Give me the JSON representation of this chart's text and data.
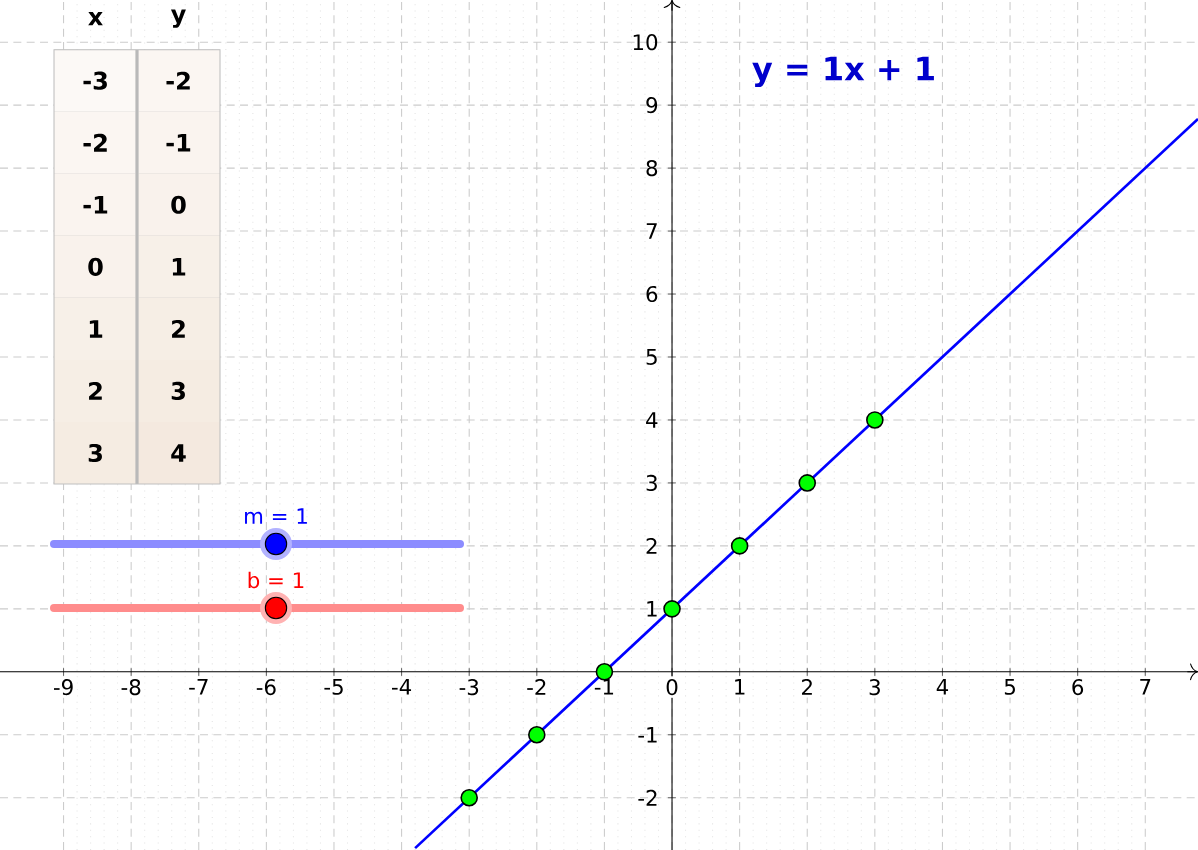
{
  "chart_data": [
    {
      "type": "line",
      "title": "y = 1x + 1",
      "series": [
        {
          "type": "line",
          "color": "#0000ff",
          "x": [
            -3.8,
            7.78
          ],
          "values": [
            -2.8,
            8.78
          ],
          "marker": "none"
        },
        {
          "type": "scatter",
          "color": "#00ff00",
          "x": [
            -3,
            -2,
            -1,
            0,
            1,
            2,
            3
          ],
          "values": [
            -2,
            -1,
            0,
            1,
            2,
            3,
            4
          ],
          "marker": "circle"
        }
      ],
      "xlim": [
        -9.94,
        7.78
      ],
      "ylim": [
        -2.83,
        10.67
      ],
      "xticks": [
        -9,
        -8,
        -7,
        -6,
        -5,
        -4,
        -3,
        -2,
        -1,
        0,
        1,
        2,
        3,
        4,
        5,
        6,
        7
      ],
      "yticks": [
        -2,
        -1,
        1,
        2,
        3,
        4,
        5,
        6,
        7,
        8,
        9,
        10
      ],
      "grid": true,
      "annotations": [
        "m = 1",
        "b = 1"
      ]
    },
    {
      "type": "heatmap",
      "categories": [
        "x",
        "y"
      ],
      "y_categories": [
        null,
        null,
        null,
        null,
        null,
        null,
        null
      ],
      "data_labels": true,
      "cells": [
        [
          -3,
          -2
        ],
        [
          -2,
          -1
        ],
        [
          -1,
          0
        ],
        [
          0,
          1
        ],
        [
          1,
          2
        ],
        [
          2,
          3
        ],
        [
          3,
          4
        ]
      ],
      "cell_labels": [
        [
          "-3",
          "-2"
        ],
        [
          "-2",
          "-1"
        ],
        [
          "-1",
          "0"
        ],
        [
          "0",
          "1"
        ],
        [
          "1",
          "2"
        ],
        [
          "2",
          "3"
        ],
        [
          "3",
          "4"
        ]
      ]
    }
  ]
}
